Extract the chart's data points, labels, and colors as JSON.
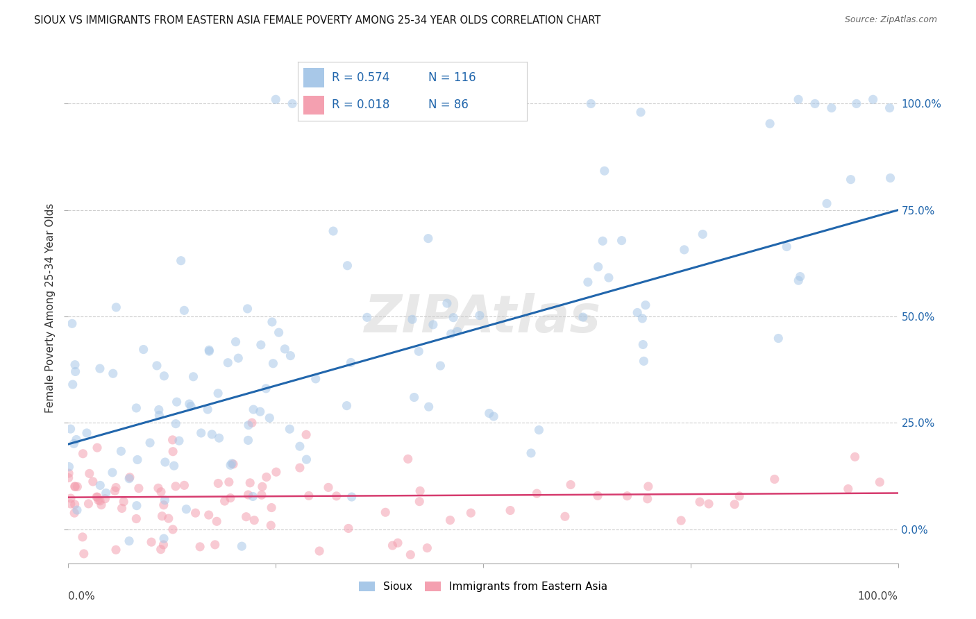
{
  "title": "SIOUX VS IMMIGRANTS FROM EASTERN ASIA FEMALE POVERTY AMONG 25-34 YEAR OLDS CORRELATION CHART",
  "source": "Source: ZipAtlas.com",
  "ylabel": "Female Poverty Among 25-34 Year Olds",
  "legend_labels": [
    "Sioux",
    "Immigrants from Eastern Asia"
  ],
  "sioux_R": 0.574,
  "sioux_N": 116,
  "eastern_asia_R": 0.018,
  "eastern_asia_N": 86,
  "sioux_color": "#a8c8e8",
  "eastern_asia_color": "#f4a0b0",
  "sioux_line_color": "#2166ac",
  "eastern_asia_line_color": "#d63b6e",
  "background_color": "#ffffff",
  "grid_color": "#cccccc",
  "watermark": "ZIPAtlas",
  "watermark_color": "#cccccc",
  "xlim": [
    0,
    1
  ],
  "ylim": [
    -0.08,
    1.12
  ],
  "yticks": [
    0.0,
    0.25,
    0.5,
    0.75,
    1.0
  ],
  "ytick_labels": [
    "0.0%",
    "25.0%",
    "50.0%",
    "75.0%",
    "100.0%"
  ],
  "marker_size": 90,
  "marker_alpha": 0.55,
  "legend_color": "#2166ac",
  "sioux_line_y0": 0.2,
  "sioux_line_y1": 0.75,
  "eastern_asia_line_y0": 0.075,
  "eastern_asia_line_y1": 0.085
}
